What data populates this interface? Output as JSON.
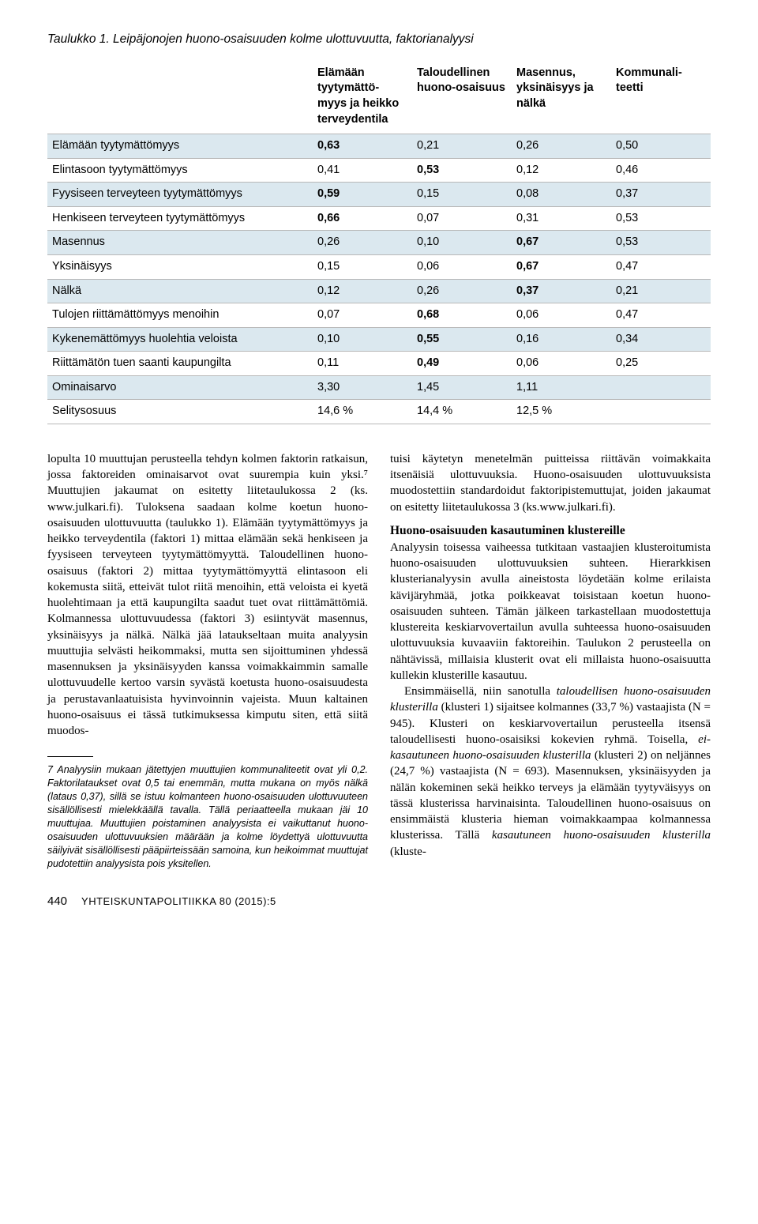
{
  "table": {
    "caption": "Taulukko 1. Leipäjonojen huono-osaisuuden kolme ulottuvuutta, faktorianalyysi",
    "columns": [
      "",
      "Elämään tyytymättö-myys ja heikko terveydentila",
      "Taloudellinen huono-osaisuus",
      "Masennus, yksinäisyys ja nälkä",
      "Kommunali-teetti"
    ],
    "rows": [
      {
        "hl": true,
        "cells": [
          "Elämään tyytymättömyys",
          "0,63",
          "0,21",
          "0,26",
          "0,50"
        ],
        "bold": [
          1
        ]
      },
      {
        "hl": false,
        "cells": [
          "Elintasoon tyytymättömyys",
          "0,41",
          "0,53",
          "0,12",
          "0,46"
        ],
        "bold": [
          2
        ]
      },
      {
        "hl": true,
        "cells": [
          "Fyysiseen terveyteen tyytymättömyys",
          "0,59",
          "0,15",
          "0,08",
          "0,37"
        ],
        "bold": [
          1
        ]
      },
      {
        "hl": false,
        "cells": [
          "Henkiseen terveyteen tyytymättömyys",
          "0,66",
          "0,07",
          "0,31",
          "0,53"
        ],
        "bold": [
          1
        ]
      },
      {
        "hl": true,
        "cells": [
          "Masennus",
          "0,26",
          "0,10",
          "0,67",
          "0,53"
        ],
        "bold": [
          3
        ]
      },
      {
        "hl": false,
        "cells": [
          "Yksinäisyys",
          "0,15",
          "0,06",
          "0,67",
          "0,47"
        ],
        "bold": [
          3
        ]
      },
      {
        "hl": true,
        "cells": [
          "Nälkä",
          "0,12",
          "0,26",
          "0,37",
          "0,21"
        ],
        "bold": [
          3
        ]
      },
      {
        "hl": false,
        "cells": [
          "Tulojen riittämättömyys menoihin",
          "0,07",
          "0,68",
          "0,06",
          "0,47"
        ],
        "bold": [
          2
        ]
      },
      {
        "hl": true,
        "cells": [
          "Kykenemättömyys huolehtia veloista",
          "0,10",
          "0,55",
          "0,16",
          "0,34"
        ],
        "bold": [
          2
        ]
      },
      {
        "hl": false,
        "cells": [
          "Riittämätön tuen saanti kaupungilta",
          "0,11",
          "0,49",
          "0,06",
          "0,25"
        ],
        "bold": [
          2
        ]
      },
      {
        "hl": true,
        "cells": [
          "Ominaisarvo",
          "3,30",
          "1,45",
          "1,11",
          ""
        ],
        "bold": []
      },
      {
        "hl": false,
        "cells": [
          "Selitysosuus",
          "14,6 %",
          "14,4 %",
          "12,5 %",
          ""
        ],
        "bold": []
      }
    ],
    "highlight_color": "#dbe8ef",
    "border_color": "#b8b8b8",
    "font_family": "Arial",
    "font_size": 14.5
  },
  "body": {
    "left_para": "lopulta 10 muuttujan perusteella tehdyn kolmen faktorin ratkaisun, jossa faktoreiden ominaisarvot ovat suurempia kuin yksi.⁷ Muuttujien jakaumat on esitetty liitetaulukossa 2 (ks. www.julkari.fi). Tuloksena saadaan kolme koetun huono-osaisuuden ulottuvuutta (taulukko 1). Elämään tyytymättömyys ja heikko terveydentila (faktori 1) mittaa elämään sekä henkiseen ja fyysiseen terveyteen tyytymättömyyttä. Taloudellinen huono-osaisuus (faktori 2) mittaa tyytymättömyyttä elintasoon eli kokemusta siitä, etteivät tulot riitä menoihin, että veloista ei kyetä huolehtimaan ja että kaupungilta saadut tuet ovat riittämättömiä. Kolmannessa ulottuvuudessa (faktori 3) esiintyvät masennus, yksinäisyys ja nälkä. Nälkä jää lataukseltaan muita analyysin muuttujia selvästi heikommaksi, mutta sen sijoittuminen yhdessä masennuksen ja yksinäisyyden kanssa voimakkaimmin samalle ulottuvuudelle kertoo varsin syvästä koetusta huono-osaisuudesta ja perustavanlaatuisista hyvinvoinnin vajeista. Muun kaltainen huono-osaisuus ei tässä tutkimuksessa kimputu siten, että siitä muodos-",
    "right_para1": "tuisi käytetyn menetelmän puitteissa riittävän voimakkaita itsenäisiä ulottuvuuksia. Huono-osaisuuden ulottuvuuksista muodostettiin standardoidut faktoripistemuttujat, joiden jakaumat on esitetty liitetaulukossa 3 (ks.www.julkari.fi).",
    "right_heading": "Huono-osaisuuden kasautuminen klustereille",
    "right_para2": "Analyysin toisessa vaiheessa tutkitaan vastaajien klusteroitumista huono-osaisuuden ulottuvuuksien suhteen. Hierarkkisen klusterianalyysin avulla aineistosta löydetään kolme erilaista kävijäryhmää, jotka poikkeavat toisistaan koetun huono-osaisuuden suhteen. Tämän jälkeen tarkastellaan muodostettuja klustereita keskiarvovertailun avulla suhteessa huono-osaisuuden ulottuvuuksia kuvaaviin faktoreihin. Taulukon 2 perusteella on nähtävissä, millaisia klusterit ovat eli millaista huono-osaisuutta kullekin klusterille kasautuu.",
    "right_para3_html": "Ensimmäisellä, niin sanotulla <em>taloudellisen huono-osaisuuden klusterilla</em> (klusteri 1) sijaitsee kolmannes (33,7 %) vastaajista (N = 945). Klusteri on keskiarvovertailun perusteella itsensä taloudellisesti huono-osaisiksi kokevien ryhmä. Toisella, <em>ei-kasautuneen huono-osaisuuden klusterilla</em> (klusteri 2) on neljännes (24,7 %) vastaajista (N = 693). Masennuksen, yksinäisyyden ja nälän kokeminen sekä heikko terveys ja elämään tyytyväisyys on tässä klusterissa harvinaisinta. Taloudellinen huono-osaisuus on ensimmäistä klusteria hieman voimakkaampaa kolmannessa klusterissa. Tällä <em>kasautuneen huono-osaisuuden klusterilla</em> (kluste-"
  },
  "footnote": "7 Analyysiin mukaan jätettyjen muuttujien kommunaliteetit ovat yli 0,2. Faktorilataukset ovat 0,5 tai enemmän, mutta mukana on myös nälkä (lataus 0,37), sillä se istuu kolmanteen huono-osaisuuden ulottuvuuteen sisällöllisesti mielekkäällä tavalla. Tällä periaatteella mukaan jäi 10 muuttujaa. Muuttujien poistaminen analyysista ei vaikuttanut huono-osaisuuden ulottuvuuksien määrään ja kolme löydettyä ulottuvuutta säilyivät sisällöllisesti pääpiirteissään samoina, kun heikoimmat muuttujat pudotettiin analyysista pois yksitellen.",
  "runner": {
    "page": "440",
    "journal": "YHTEISKUNTAPOLITIIKKA 80 (2015):5"
  },
  "style": {
    "body_font": "Georgia",
    "table_font": "Arial",
    "footnote_font": "Arial",
    "background": "#ffffff",
    "text_color": "#000000",
    "highlight_color": "#dbe8ef"
  }
}
